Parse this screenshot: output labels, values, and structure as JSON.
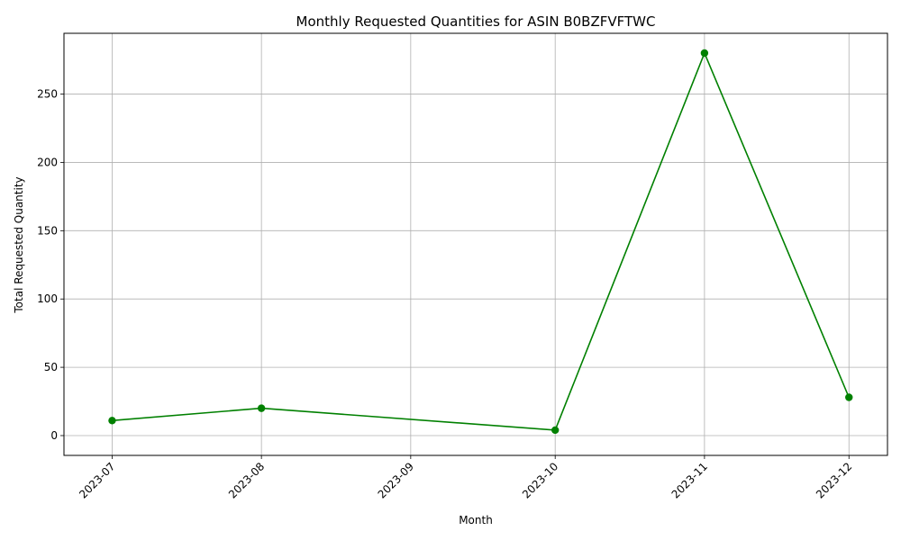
{
  "chart_data": {
    "type": "line",
    "title": "Monthly Requested Quantities for ASIN B0BZFVFTWC",
    "xlabel": "Month",
    "ylabel": "Total Requested Quantity",
    "x_ticks": [
      "2023-07",
      "2023-08",
      "2023-09",
      "2023-10",
      "2023-11",
      "2023-12"
    ],
    "y_ticks": [
      0,
      50,
      100,
      150,
      200,
      250
    ],
    "ylim": [
      -14.5,
      294.5
    ],
    "xlim": [
      "2023-06-21",
      "2023-12-09"
    ],
    "grid": true,
    "series": [
      {
        "color": "#008000",
        "marker": "circle",
        "points": [
          {
            "x": "2023-07-01",
            "y": 11
          },
          {
            "x": "2023-08-01",
            "y": 20
          },
          {
            "x": "2023-10-01",
            "y": 4
          },
          {
            "x": "2023-11-01",
            "y": 280
          },
          {
            "x": "2023-12-01",
            "y": 28
          }
        ]
      }
    ]
  }
}
